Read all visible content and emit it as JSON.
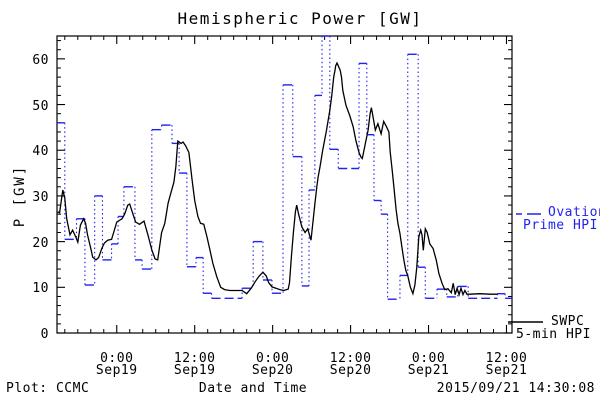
{
  "title": "Hemispheric Power [GW]",
  "footer": {
    "left": "Plot: CCMC",
    "right": "2015/09/21 14:30:08"
  },
  "y_axis": {
    "label": "P [GW]",
    "min": 0,
    "max": 65,
    "major_step": 10,
    "minor_step": 2,
    "tick_labels": [
      "0",
      "10",
      "20",
      "30",
      "40",
      "50",
      "60"
    ]
  },
  "x_axis": {
    "label": "Date and Time",
    "hours_start": -9.2,
    "hours_end": 60.85,
    "hours_reference": "hours from 2015-09-19 00:00 UT",
    "minor_step_hours": 2,
    "major_ticks": [
      {
        "hours": 0,
        "time": "0:00",
        "date": "Sep19"
      },
      {
        "hours": 12,
        "time": "12:00",
        "date": "Sep19"
      },
      {
        "hours": 24,
        "time": "0:00",
        "date": "Sep20"
      },
      {
        "hours": 36,
        "time": "12:00",
        "date": "Sep20"
      },
      {
        "hours": 48,
        "time": "0:00",
        "date": "Sep21"
      },
      {
        "hours": 60,
        "time": "12:00",
        "date": "Sep21"
      }
    ]
  },
  "legend": {
    "ovation": {
      "label_line1": "Ovation",
      "label_line2": "Prime HPI",
      "color": "#2222ee"
    },
    "swpc": {
      "label_line1": "SWPC",
      "label_line2": "5-min HPI",
      "color": "#000000"
    }
  },
  "chart_data": {
    "type": "line",
    "title": "Hemispheric Power [GW]",
    "xlabel": "Date and Time",
    "ylabel": "P [GW]",
    "ylim": [
      0,
      65
    ],
    "xlim_hours": [
      -9.2,
      60.85
    ],
    "grid": false,
    "legend_position": "right-outside",
    "note": "x in hours from 2015-09-19 00:00 UT; Ovation step near t=31.6-32.8 is clipped at plot top (~65 GW)",
    "series": [
      {
        "name": "Ovation Prime HPI",
        "type": "step",
        "color": "#2222ee",
        "line_style": "dashed horizontal steps with dotted vertical connectors",
        "steps_t0_t1_gw": [
          [
            -9.2,
            -8.0,
            46
          ],
          [
            -8.0,
            -6.2,
            20.5
          ],
          [
            -6.2,
            -4.9,
            25
          ],
          [
            -4.9,
            -3.4,
            10.5
          ],
          [
            -3.4,
            -2.2,
            30
          ],
          [
            -2.2,
            -0.8,
            16
          ],
          [
            -0.8,
            0.2,
            19.5
          ],
          [
            0.2,
            1.1,
            25.5
          ],
          [
            1.1,
            2.8,
            32
          ],
          [
            2.8,
            3.9,
            16
          ],
          [
            3.9,
            5.4,
            14
          ],
          [
            5.4,
            6.9,
            44.5
          ],
          [
            6.9,
            8.5,
            45.5
          ],
          [
            8.5,
            9.6,
            41.5
          ],
          [
            9.6,
            10.8,
            35
          ],
          [
            10.8,
            12.2,
            14.5
          ],
          [
            12.2,
            13.3,
            16.5
          ],
          [
            13.3,
            14.6,
            8.7
          ],
          [
            14.6,
            19.3,
            7.6
          ],
          [
            19.3,
            21.0,
            9.8
          ],
          [
            21.0,
            22.5,
            20
          ],
          [
            22.5,
            23.9,
            11.6
          ],
          [
            23.9,
            25.6,
            8.7
          ],
          [
            25.6,
            27.1,
            54.3
          ],
          [
            27.1,
            28.5,
            38.6
          ],
          [
            28.5,
            29.6,
            10.3
          ],
          [
            29.6,
            30.5,
            31.3
          ],
          [
            30.5,
            31.6,
            52
          ],
          [
            31.6,
            32.8,
            65
          ],
          [
            32.8,
            34.1,
            40.2
          ],
          [
            34.1,
            37.3,
            36
          ],
          [
            37.3,
            38.5,
            59
          ],
          [
            38.5,
            39.6,
            43.4
          ],
          [
            39.6,
            40.7,
            29
          ],
          [
            40.7,
            41.7,
            26
          ],
          [
            41.7,
            43.6,
            7.4
          ],
          [
            43.6,
            44.8,
            12.6
          ],
          [
            44.8,
            46.4,
            61
          ],
          [
            46.4,
            47.5,
            14.4
          ],
          [
            47.5,
            49.3,
            7.6
          ],
          [
            49.3,
            50.8,
            9.6
          ],
          [
            50.8,
            52.5,
            7.9
          ],
          [
            52.5,
            54.1,
            10.2
          ],
          [
            54.1,
            58.6,
            7.6
          ],
          [
            58.6,
            59.8,
            8.6
          ],
          [
            59.8,
            60.85,
            7.6
          ]
        ]
      },
      {
        "name": "SWPC 5-min HPI",
        "type": "line",
        "color": "#000000",
        "points_t_gw": [
          [
            -9.1,
            26.5
          ],
          [
            -8.8,
            26.3
          ],
          [
            -8.3,
            31.3
          ],
          [
            -8.0,
            29.5
          ],
          [
            -7.7,
            25.0
          ],
          [
            -7.2,
            21.5
          ],
          [
            -6.8,
            22.5
          ],
          [
            -6.3,
            21.0
          ],
          [
            -6.0,
            19.9
          ],
          [
            -5.6,
            23.6
          ],
          [
            -5.1,
            25.0
          ],
          [
            -4.8,
            24.0
          ],
          [
            -4.5,
            21.5
          ],
          [
            -4.0,
            18.5
          ],
          [
            -3.7,
            16.6
          ],
          [
            -3.2,
            16.0
          ],
          [
            -2.8,
            16.5
          ],
          [
            -2.3,
            18.5
          ],
          [
            -1.9,
            19.7
          ],
          [
            -1.4,
            20.3
          ],
          [
            -0.8,
            20.5
          ],
          [
            0.0,
            24.3
          ],
          [
            0.8,
            25.0
          ],
          [
            1.2,
            26.0
          ],
          [
            1.7,
            28.0
          ],
          [
            2.0,
            28.2
          ],
          [
            2.5,
            26.0
          ],
          [
            2.9,
            24.3
          ],
          [
            3.5,
            23.8
          ],
          [
            4.2,
            24.5
          ],
          [
            4.8,
            21.5
          ],
          [
            5.4,
            18.2
          ],
          [
            5.9,
            16.2
          ],
          [
            6.3,
            16.0
          ],
          [
            6.9,
            22.0
          ],
          [
            7.4,
            24.0
          ],
          [
            7.9,
            28.4
          ],
          [
            8.3,
            30.5
          ],
          [
            8.8,
            33.0
          ],
          [
            9.1,
            36.5
          ],
          [
            9.4,
            42.0
          ],
          [
            9.9,
            41.5
          ],
          [
            10.2,
            41.8
          ],
          [
            10.6,
            41.0
          ],
          [
            11.1,
            39.5
          ],
          [
            11.6,
            33.5
          ],
          [
            12.0,
            29.0
          ],
          [
            12.5,
            25.5
          ],
          [
            12.9,
            24.0
          ],
          [
            13.4,
            23.8
          ],
          [
            13.9,
            21.0
          ],
          [
            14.3,
            18.5
          ],
          [
            14.8,
            15.2
          ],
          [
            15.4,
            12.3
          ],
          [
            16.0,
            10.0
          ],
          [
            16.6,
            9.5
          ],
          [
            17.4,
            9.3
          ],
          [
            18.3,
            9.3
          ],
          [
            19.3,
            9.3
          ],
          [
            20.0,
            8.6
          ],
          [
            20.7,
            9.8
          ],
          [
            21.3,
            11.2
          ],
          [
            21.9,
            12.4
          ],
          [
            22.5,
            13.3
          ],
          [
            23.0,
            12.5
          ],
          [
            23.4,
            11.0
          ],
          [
            23.9,
            10.1
          ],
          [
            24.5,
            9.8
          ],
          [
            25.1,
            9.5
          ],
          [
            25.7,
            9.3
          ],
          [
            26.4,
            9.6
          ],
          [
            26.6,
            11.0
          ],
          [
            26.9,
            17.0
          ],
          [
            27.2,
            22.0
          ],
          [
            27.5,
            26.5
          ],
          [
            27.7,
            28.0
          ],
          [
            28.0,
            26.0
          ],
          [
            28.5,
            23.2
          ],
          [
            29.0,
            22.0
          ],
          [
            29.4,
            22.8
          ],
          [
            29.9,
            20.3
          ],
          [
            30.5,
            28.3
          ],
          [
            30.8,
            32.0
          ],
          [
            31.0,
            34.1
          ],
          [
            31.3,
            36.5
          ],
          [
            31.7,
            40.0
          ],
          [
            32.3,
            44.5
          ],
          [
            32.8,
            48.7
          ],
          [
            33.1,
            52.0
          ],
          [
            33.4,
            56.0
          ],
          [
            33.6,
            57.5
          ],
          [
            33.7,
            58.5
          ],
          [
            33.9,
            59.1
          ],
          [
            34.1,
            58.5
          ],
          [
            34.4,
            57.5
          ],
          [
            34.6,
            56.0
          ],
          [
            34.8,
            53.1
          ],
          [
            35.3,
            49.8
          ],
          [
            35.9,
            47.5
          ],
          [
            36.4,
            45.1
          ],
          [
            36.8,
            42.2
          ],
          [
            37.3,
            39.5
          ],
          [
            37.6,
            38.5
          ],
          [
            37.8,
            38.2
          ],
          [
            38.2,
            41.0
          ],
          [
            38.7,
            44.4
          ],
          [
            39.0,
            48.0
          ],
          [
            39.2,
            49.3
          ],
          [
            39.5,
            47.0
          ],
          [
            39.8,
            44.4
          ],
          [
            40.2,
            45.8
          ],
          [
            40.7,
            43.6
          ],
          [
            41.1,
            46.3
          ],
          [
            41.6,
            44.9
          ],
          [
            41.9,
            44.0
          ],
          [
            42.1,
            39.6
          ],
          [
            42.4,
            35.6
          ],
          [
            42.7,
            31.5
          ],
          [
            43.0,
            27.0
          ],
          [
            43.3,
            23.9
          ],
          [
            43.6,
            21.7
          ],
          [
            43.9,
            18.8
          ],
          [
            44.2,
            15.9
          ],
          [
            44.5,
            13.7
          ],
          [
            44.8,
            12.6
          ],
          [
            45.2,
            10.1
          ],
          [
            45.6,
            8.6
          ],
          [
            45.9,
            10.5
          ],
          [
            46.2,
            14.4
          ],
          [
            46.5,
            21.0
          ],
          [
            46.8,
            22.5
          ],
          [
            47.0,
            21.5
          ],
          [
            47.2,
            18.1
          ],
          [
            47.5,
            22.8
          ],
          [
            47.8,
            22.0
          ],
          [
            48.2,
            19.5
          ],
          [
            48.7,
            18.5
          ],
          [
            49.2,
            15.9
          ],
          [
            49.6,
            13.0
          ],
          [
            50.1,
            10.8
          ],
          [
            50.5,
            9.5
          ],
          [
            51.0,
            9.7
          ],
          [
            51.5,
            8.8
          ],
          [
            51.8,
            10.9
          ],
          [
            52.1,
            8.4
          ],
          [
            52.4,
            9.8
          ],
          [
            52.7,
            8.4
          ],
          [
            53.0,
            9.8
          ],
          [
            53.3,
            8.4
          ],
          [
            53.6,
            9.3
          ],
          [
            53.9,
            8.5
          ],
          [
            54.4,
            8.5
          ],
          [
            55.9,
            8.6
          ],
          [
            57.5,
            8.5
          ],
          [
            58.6,
            8.5
          ]
        ]
      }
    ]
  }
}
